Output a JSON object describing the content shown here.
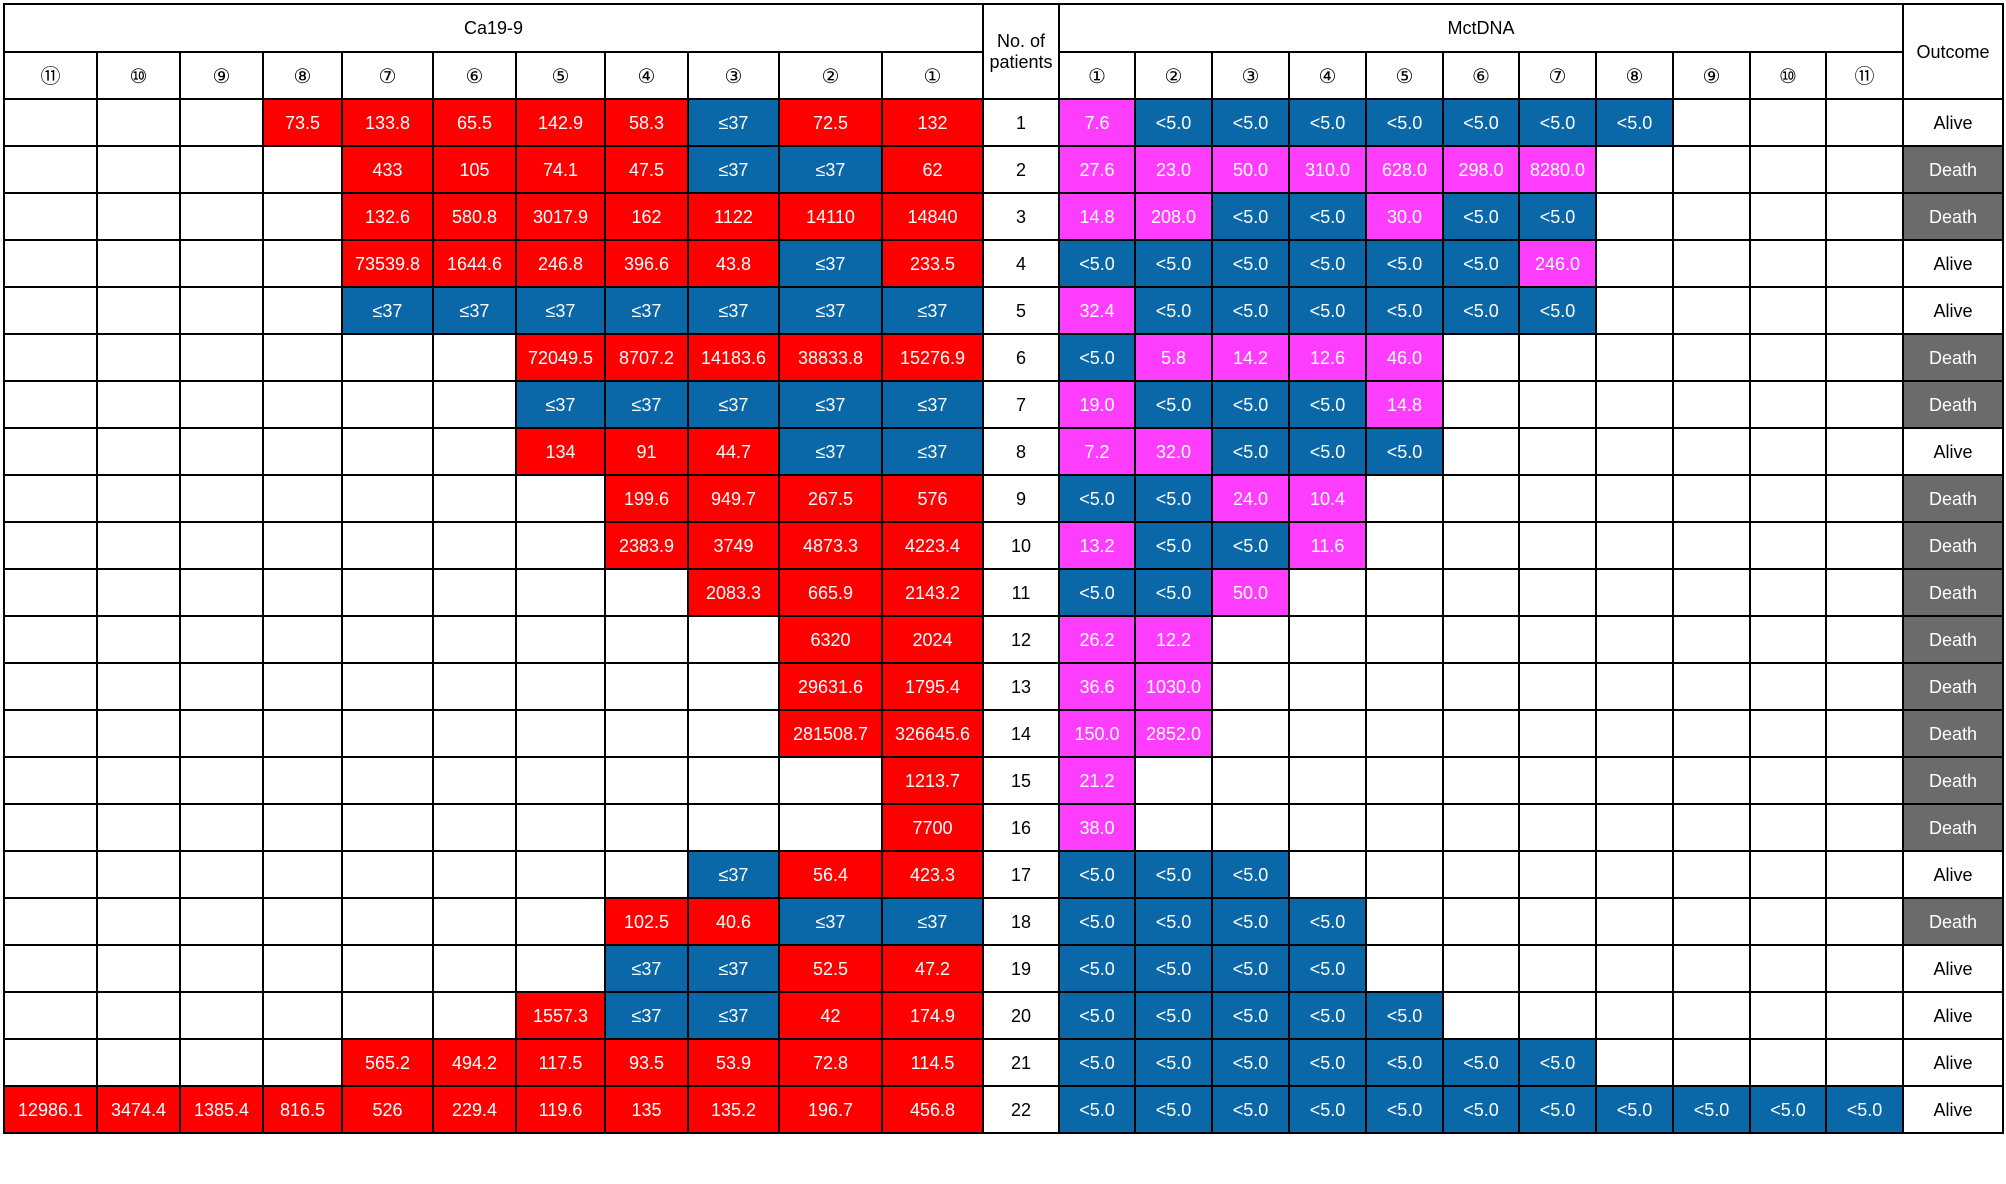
{
  "headers": {
    "ca199": "Ca19-9",
    "patients": "No. of patients",
    "mctdna": "MctDNA",
    "outcome": "Outcome"
  },
  "ca_cols": [
    "⑪",
    "⑩",
    "⑨",
    "⑧",
    "⑦",
    "⑥",
    "⑤",
    "④",
    "③",
    "②",
    "①"
  ],
  "mct_cols": [
    "①",
    "②",
    "③",
    "④",
    "⑤",
    "⑥",
    "⑦",
    "⑧",
    "⑨",
    "⑩",
    "⑪"
  ],
  "legend_colors": {
    "ca_elevated": "#ff0000",
    "normal": "#0b68a8",
    "mct_positive": "#ff3dff",
    "death": "#6b6b6b"
  },
  "rows": [
    {
      "no": "1",
      "ca": [
        null,
        null,
        null,
        [
          "73.5",
          "r"
        ],
        [
          "133.8",
          "r"
        ],
        [
          "65.5",
          "r"
        ],
        [
          "142.9",
          "r"
        ],
        [
          "58.3",
          "r"
        ],
        [
          "≤37",
          "b"
        ],
        [
          "72.5",
          "r"
        ],
        [
          "132",
          "r"
        ]
      ],
      "mct": [
        [
          "7.6",
          "p"
        ],
        [
          "<5.0",
          "b"
        ],
        [
          "<5.0",
          "b"
        ],
        [
          "<5.0",
          "b"
        ],
        [
          "<5.0",
          "b"
        ],
        [
          "<5.0",
          "b"
        ],
        [
          "<5.0",
          "b"
        ],
        [
          "<5.0",
          "b"
        ],
        null,
        null,
        null
      ],
      "outcome": "Alive"
    },
    {
      "no": "2",
      "ca": [
        null,
        null,
        null,
        null,
        [
          "433",
          "r"
        ],
        [
          "105",
          "r"
        ],
        [
          "74.1",
          "r"
        ],
        [
          "47.5",
          "r"
        ],
        [
          "≤37",
          "b"
        ],
        [
          "≤37",
          "b"
        ],
        [
          "62",
          "r"
        ]
      ],
      "mct": [
        [
          "27.6",
          "p"
        ],
        [
          "23.0",
          "p"
        ],
        [
          "50.0",
          "p"
        ],
        [
          "310.0",
          "p"
        ],
        [
          "628.0",
          "p"
        ],
        [
          "298.0",
          "p"
        ],
        [
          "8280.0",
          "p"
        ],
        null,
        null,
        null,
        null
      ],
      "outcome": "Death"
    },
    {
      "no": "3",
      "ca": [
        null,
        null,
        null,
        null,
        [
          "132.6",
          "r"
        ],
        [
          "580.8",
          "r"
        ],
        [
          "3017.9",
          "r"
        ],
        [
          "162",
          "r"
        ],
        [
          "1122",
          "r"
        ],
        [
          "14110",
          "r"
        ],
        [
          "14840",
          "r"
        ]
      ],
      "mct": [
        [
          "14.8",
          "p"
        ],
        [
          "208.0",
          "p"
        ],
        [
          "<5.0",
          "b"
        ],
        [
          "<5.0",
          "b"
        ],
        [
          "30.0",
          "p"
        ],
        [
          "<5.0",
          "b"
        ],
        [
          "<5.0",
          "b"
        ],
        null,
        null,
        null,
        null
      ],
      "outcome": "Death"
    },
    {
      "no": "4",
      "ca": [
        null,
        null,
        null,
        null,
        [
          "73539.8",
          "r"
        ],
        [
          "1644.6",
          "r"
        ],
        [
          "246.8",
          "r"
        ],
        [
          "396.6",
          "r"
        ],
        [
          "43.8",
          "r"
        ],
        [
          "≤37",
          "b"
        ],
        [
          "233.5",
          "r"
        ]
      ],
      "mct": [
        [
          "<5.0",
          "b"
        ],
        [
          "<5.0",
          "b"
        ],
        [
          "<5.0",
          "b"
        ],
        [
          "<5.0",
          "b"
        ],
        [
          "<5.0",
          "b"
        ],
        [
          "<5.0",
          "b"
        ],
        [
          "246.0",
          "p"
        ],
        null,
        null,
        null,
        null
      ],
      "outcome": "Alive"
    },
    {
      "no": "5",
      "ca": [
        null,
        null,
        null,
        null,
        [
          "≤37",
          "b"
        ],
        [
          "≤37",
          "b"
        ],
        [
          "≤37",
          "b"
        ],
        [
          "≤37",
          "b"
        ],
        [
          "≤37",
          "b"
        ],
        [
          "≤37",
          "b"
        ],
        [
          "≤37",
          "b"
        ]
      ],
      "mct": [
        [
          "32.4",
          "p"
        ],
        [
          "<5.0",
          "b"
        ],
        [
          "<5.0",
          "b"
        ],
        [
          "<5.0",
          "b"
        ],
        [
          "<5.0",
          "b"
        ],
        [
          "<5.0",
          "b"
        ],
        [
          "<5.0",
          "b"
        ],
        null,
        null,
        null,
        null
      ],
      "outcome": "Alive"
    },
    {
      "no": "6",
      "ca": [
        null,
        null,
        null,
        null,
        null,
        null,
        [
          "72049.5",
          "r"
        ],
        [
          "8707.2",
          "r"
        ],
        [
          "14183.6",
          "r"
        ],
        [
          "38833.8",
          "r"
        ],
        [
          "15276.9",
          "r"
        ]
      ],
      "mct": [
        [
          "<5.0",
          "b"
        ],
        [
          "5.8",
          "p"
        ],
        [
          "14.2",
          "p"
        ],
        [
          "12.6",
          "p"
        ],
        [
          "46.0",
          "p"
        ],
        null,
        null,
        null,
        null,
        null,
        null
      ],
      "outcome": "Death"
    },
    {
      "no": "7",
      "ca": [
        null,
        null,
        null,
        null,
        null,
        null,
        [
          "≤37",
          "b"
        ],
        [
          "≤37",
          "b"
        ],
        [
          "≤37",
          "b"
        ],
        [
          "≤37",
          "b"
        ],
        [
          "≤37",
          "b"
        ]
      ],
      "mct": [
        [
          "19.0",
          "p"
        ],
        [
          "<5.0",
          "b"
        ],
        [
          "<5.0",
          "b"
        ],
        [
          "<5.0",
          "b"
        ],
        [
          "14.8",
          "p"
        ],
        null,
        null,
        null,
        null,
        null,
        null
      ],
      "outcome": "Death"
    },
    {
      "no": "8",
      "ca": [
        null,
        null,
        null,
        null,
        null,
        null,
        [
          "134",
          "r"
        ],
        [
          "91",
          "r"
        ],
        [
          "44.7",
          "r"
        ],
        [
          "≤37",
          "b"
        ],
        [
          "≤37",
          "b"
        ]
      ],
      "mct": [
        [
          "7.2",
          "p"
        ],
        [
          "32.0",
          "p"
        ],
        [
          "<5.0",
          "b"
        ],
        [
          "<5.0",
          "b"
        ],
        [
          "<5.0",
          "b"
        ],
        null,
        null,
        null,
        null,
        null,
        null
      ],
      "outcome": "Alive"
    },
    {
      "no": "9",
      "ca": [
        null,
        null,
        null,
        null,
        null,
        null,
        null,
        [
          "199.6",
          "r"
        ],
        [
          "949.7",
          "r"
        ],
        [
          "267.5",
          "r"
        ],
        [
          "576",
          "r"
        ]
      ],
      "mct": [
        [
          "<5.0",
          "b"
        ],
        [
          "<5.0",
          "b"
        ],
        [
          "24.0",
          "p"
        ],
        [
          "10.4",
          "p"
        ],
        null,
        null,
        null,
        null,
        null,
        null,
        null
      ],
      "outcome": "Death"
    },
    {
      "no": "10",
      "ca": [
        null,
        null,
        null,
        null,
        null,
        null,
        null,
        [
          "2383.9",
          "r"
        ],
        [
          "3749",
          "r"
        ],
        [
          "4873.3",
          "r"
        ],
        [
          "4223.4",
          "r"
        ]
      ],
      "mct": [
        [
          "13.2",
          "p"
        ],
        [
          "<5.0",
          "b"
        ],
        [
          "<5.0",
          "b"
        ],
        [
          "11.6",
          "p"
        ],
        null,
        null,
        null,
        null,
        null,
        null,
        null
      ],
      "outcome": "Death"
    },
    {
      "no": "11",
      "ca": [
        null,
        null,
        null,
        null,
        null,
        null,
        null,
        null,
        [
          "2083.3",
          "r"
        ],
        [
          "665.9",
          "r"
        ],
        [
          "2143.2",
          "r"
        ]
      ],
      "mct": [
        [
          "<5.0",
          "b"
        ],
        [
          "<5.0",
          "b"
        ],
        [
          "50.0",
          "p"
        ],
        null,
        null,
        null,
        null,
        null,
        null,
        null,
        null
      ],
      "outcome": "Death"
    },
    {
      "no": "12",
      "ca": [
        null,
        null,
        null,
        null,
        null,
        null,
        null,
        null,
        null,
        [
          "6320",
          "r"
        ],
        [
          "2024",
          "r"
        ]
      ],
      "mct": [
        [
          "26.2",
          "p"
        ],
        [
          "12.2",
          "p"
        ],
        null,
        null,
        null,
        null,
        null,
        null,
        null,
        null,
        null
      ],
      "outcome": "Death"
    },
    {
      "no": "13",
      "ca": [
        null,
        null,
        null,
        null,
        null,
        null,
        null,
        null,
        null,
        [
          "29631.6",
          "r"
        ],
        [
          "1795.4",
          "r"
        ]
      ],
      "mct": [
        [
          "36.6",
          "p"
        ],
        [
          "1030.0",
          "p"
        ],
        null,
        null,
        null,
        null,
        null,
        null,
        null,
        null,
        null
      ],
      "outcome": "Death"
    },
    {
      "no": "14",
      "ca": [
        null,
        null,
        null,
        null,
        null,
        null,
        null,
        null,
        null,
        [
          "281508.7",
          "r"
        ],
        [
          "326645.6",
          "r"
        ]
      ],
      "mct": [
        [
          "150.0",
          "p"
        ],
        [
          "2852.0",
          "p"
        ],
        null,
        null,
        null,
        null,
        null,
        null,
        null,
        null,
        null
      ],
      "outcome": "Death"
    },
    {
      "no": "15",
      "ca": [
        null,
        null,
        null,
        null,
        null,
        null,
        null,
        null,
        null,
        null,
        [
          "1213.7",
          "r"
        ]
      ],
      "mct": [
        [
          "21.2",
          "p"
        ],
        null,
        null,
        null,
        null,
        null,
        null,
        null,
        null,
        null,
        null
      ],
      "outcome": "Death"
    },
    {
      "no": "16",
      "ca": [
        null,
        null,
        null,
        null,
        null,
        null,
        null,
        null,
        null,
        null,
        [
          "7700",
          "r"
        ]
      ],
      "mct": [
        [
          "38.0",
          "p"
        ],
        null,
        null,
        null,
        null,
        null,
        null,
        null,
        null,
        null,
        null
      ],
      "outcome": "Death"
    },
    {
      "no": "17",
      "ca": [
        null,
        null,
        null,
        null,
        null,
        null,
        null,
        null,
        [
          "≤37",
          "b"
        ],
        [
          "56.4",
          "r"
        ],
        [
          "423.3",
          "r"
        ]
      ],
      "mct": [
        [
          "<5.0",
          "b"
        ],
        [
          "<5.0",
          "b"
        ],
        [
          "<5.0",
          "b"
        ],
        null,
        null,
        null,
        null,
        null,
        null,
        null,
        null
      ],
      "outcome": "Alive"
    },
    {
      "no": "18",
      "ca": [
        null,
        null,
        null,
        null,
        null,
        null,
        null,
        [
          "102.5",
          "r"
        ],
        [
          "40.6",
          "r"
        ],
        [
          "≤37",
          "b"
        ],
        [
          "≤37",
          "b"
        ]
      ],
      "mct": [
        [
          "<5.0",
          "b"
        ],
        [
          "<5.0",
          "b"
        ],
        [
          "<5.0",
          "b"
        ],
        [
          "<5.0",
          "b"
        ],
        null,
        null,
        null,
        null,
        null,
        null,
        null
      ],
      "outcome": "Death"
    },
    {
      "no": "19",
      "ca": [
        null,
        null,
        null,
        null,
        null,
        null,
        null,
        [
          "≤37",
          "b"
        ],
        [
          "≤37",
          "b"
        ],
        [
          "52.5",
          "r"
        ],
        [
          "47.2",
          "r"
        ]
      ],
      "mct": [
        [
          "<5.0",
          "b"
        ],
        [
          "<5.0",
          "b"
        ],
        [
          "<5.0",
          "b"
        ],
        [
          "<5.0",
          "b"
        ],
        null,
        null,
        null,
        null,
        null,
        null,
        null
      ],
      "outcome": "Alive"
    },
    {
      "no": "20",
      "ca": [
        null,
        null,
        null,
        null,
        null,
        null,
        [
          "1557.3",
          "r"
        ],
        [
          "≤37",
          "b"
        ],
        [
          "≤37",
          "b"
        ],
        [
          "42",
          "r"
        ],
        [
          "174.9",
          "r"
        ]
      ],
      "mct": [
        [
          "<5.0",
          "b"
        ],
        [
          "<5.0",
          "b"
        ],
        [
          "<5.0",
          "b"
        ],
        [
          "<5.0",
          "b"
        ],
        [
          "<5.0",
          "b"
        ],
        null,
        null,
        null,
        null,
        null,
        null
      ],
      "outcome": "Alive"
    },
    {
      "no": "21",
      "ca": [
        null,
        null,
        null,
        null,
        [
          "565.2",
          "r"
        ],
        [
          "494.2",
          "r"
        ],
        [
          "117.5",
          "r"
        ],
        [
          "93.5",
          "r"
        ],
        [
          "53.9",
          "r"
        ],
        [
          "72.8",
          "r"
        ],
        [
          "114.5",
          "r"
        ]
      ],
      "mct": [
        [
          "<5.0",
          "b"
        ],
        [
          "<5.0",
          "b"
        ],
        [
          "<5.0",
          "b"
        ],
        [
          "<5.0",
          "b"
        ],
        [
          "<5.0",
          "b"
        ],
        [
          "<5.0",
          "b"
        ],
        [
          "<5.0",
          "b"
        ],
        null,
        null,
        null,
        null
      ],
      "outcome": "Alive"
    },
    {
      "no": "22",
      "ca": [
        [
          "12986.1",
          "r"
        ],
        [
          "3474.4",
          "r"
        ],
        [
          "1385.4",
          "r"
        ],
        [
          "816.5",
          "r"
        ],
        [
          "526",
          "r"
        ],
        [
          "229.4",
          "r"
        ],
        [
          "119.6",
          "r"
        ],
        [
          "135",
          "r"
        ],
        [
          "135.2",
          "r"
        ],
        [
          "196.7",
          "r"
        ],
        [
          "456.8",
          "r"
        ]
      ],
      "mct": [
        [
          "<5.0",
          "b"
        ],
        [
          "<5.0",
          "b"
        ],
        [
          "<5.0",
          "b"
        ],
        [
          "<5.0",
          "b"
        ],
        [
          "<5.0",
          "b"
        ],
        [
          "<5.0",
          "b"
        ],
        [
          "<5.0",
          "b"
        ],
        [
          "<5.0",
          "b"
        ],
        [
          "<5.0",
          "b"
        ],
        [
          "<5.0",
          "b"
        ],
        [
          "<5.0",
          "b"
        ]
      ],
      "outcome": "Alive"
    }
  ]
}
